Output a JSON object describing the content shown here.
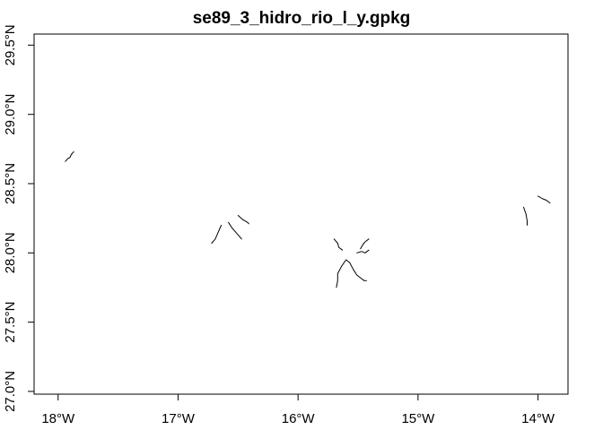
{
  "chart_data": {
    "type": "map",
    "title": "se89_3_hidro_rio_l_y.gpkg",
    "xlabel": "",
    "ylabel": "",
    "xlim": [
      -18.2,
      -13.75
    ],
    "ylim": [
      26.98,
      29.58
    ],
    "grid": false,
    "x_ticks": [
      {
        "value": -18,
        "label": "18°W"
      },
      {
        "value": -17,
        "label": "17°W"
      },
      {
        "value": -16,
        "label": "16°W"
      },
      {
        "value": -15,
        "label": "15°W"
      },
      {
        "value": -14,
        "label": "14°W"
      }
    ],
    "y_ticks": [
      {
        "value": 27.0,
        "label": "27.0°N"
      },
      {
        "value": 27.5,
        "label": "27.5°N"
      },
      {
        "value": 28.0,
        "label": "28.0°N"
      },
      {
        "value": 28.5,
        "label": "28.5°N"
      },
      {
        "value": 29.0,
        "label": "29.0°N"
      },
      {
        "value": 29.5,
        "label": "29.5°N"
      }
    ],
    "line_color": "#000000",
    "features": [
      {
        "coords": [
          [
            -17.94,
            28.66
          ],
          [
            -17.92,
            28.68
          ],
          [
            -17.9,
            28.69
          ],
          [
            -17.89,
            28.71
          ],
          [
            -17.87,
            28.73
          ]
        ]
      },
      {
        "coords": [
          [
            -16.72,
            28.07
          ],
          [
            -16.69,
            28.1
          ],
          [
            -16.67,
            28.14
          ],
          [
            -16.65,
            28.18
          ],
          [
            -16.64,
            28.2
          ]
        ]
      },
      {
        "coords": [
          [
            -16.58,
            28.22
          ],
          [
            -16.55,
            28.18
          ],
          [
            -16.52,
            28.15
          ],
          [
            -16.49,
            28.12
          ],
          [
            -16.47,
            28.1
          ]
        ]
      },
      {
        "coords": [
          [
            -16.5,
            28.27
          ],
          [
            -16.46,
            28.24
          ],
          [
            -16.42,
            28.22
          ],
          [
            -16.41,
            28.21
          ]
        ]
      },
      {
        "coords": [
          [
            -15.7,
            28.1
          ],
          [
            -15.67,
            28.07
          ],
          [
            -15.66,
            28.04
          ],
          [
            -15.63,
            28.02
          ]
        ]
      },
      {
        "coords": [
          [
            -15.48,
            28.03
          ],
          [
            -15.46,
            28.06
          ],
          [
            -15.44,
            28.08
          ],
          [
            -15.41,
            28.1
          ]
        ]
      },
      {
        "coords": [
          [
            -15.51,
            28.0
          ],
          [
            -15.47,
            28.01
          ],
          [
            -15.44,
            28.0
          ],
          [
            -15.41,
            28.02
          ]
        ]
      },
      {
        "coords": [
          [
            -15.68,
            27.75
          ],
          [
            -15.67,
            27.8
          ],
          [
            -15.67,
            27.85
          ],
          [
            -15.64,
            27.9
          ],
          [
            -15.6,
            27.95
          ],
          [
            -15.57,
            27.93
          ],
          [
            -15.54,
            27.88
          ],
          [
            -15.51,
            27.84
          ],
          [
            -15.48,
            27.82
          ],
          [
            -15.45,
            27.8
          ],
          [
            -15.43,
            27.8
          ]
        ]
      },
      {
        "coords": [
          [
            -14.12,
            28.33
          ],
          [
            -14.1,
            28.28
          ],
          [
            -14.09,
            28.23
          ],
          [
            -14.09,
            28.2
          ]
        ]
      },
      {
        "coords": [
          [
            -14.0,
            28.41
          ],
          [
            -13.96,
            28.39
          ],
          [
            -13.93,
            28.38
          ],
          [
            -13.9,
            28.36
          ]
        ]
      }
    ]
  }
}
